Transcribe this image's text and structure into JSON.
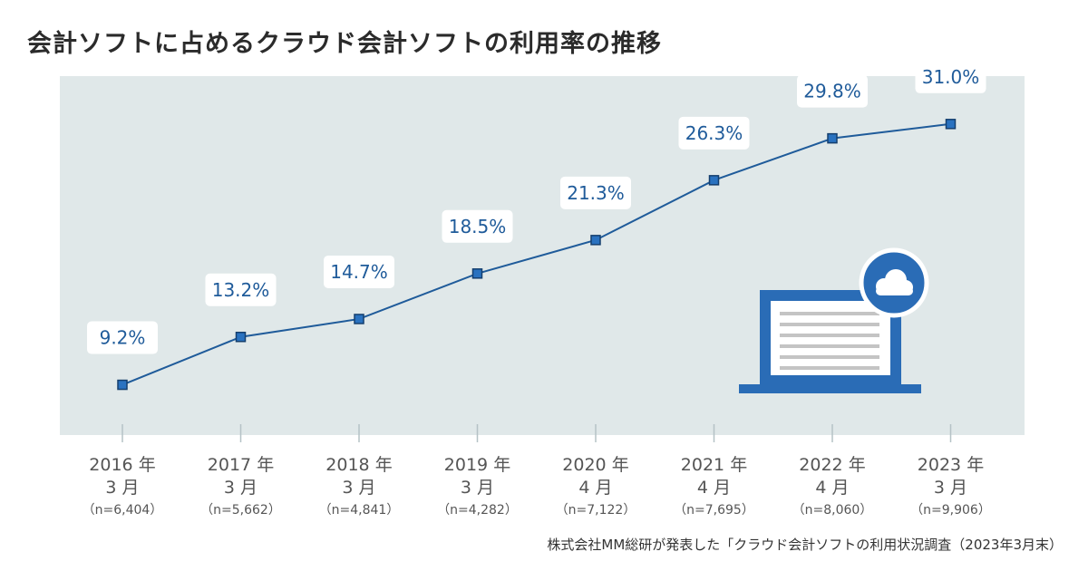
{
  "title": "会計ソフトに占めるクラウド会計ソフトの利用率の推移",
  "source_note": "株式会社MM総研が発表した「クラウド会計ソフトの利用状況調査（2023年3月末）",
  "chart_data": {
    "type": "line",
    "title": "会計ソフトに占めるクラウド会計ソフトの利用率の推移",
    "xlabel": "",
    "ylabel": "",
    "ylim": [
      5,
      35
    ],
    "grid": false,
    "categories": [
      {
        "year": "2016 年",
        "month": "3 月",
        "n": "（n=6,404）"
      },
      {
        "year": "2017 年",
        "month": "3 月",
        "n": "（n=5,662）"
      },
      {
        "year": "2018 年",
        "month": "3 月",
        "n": "（n=4,841）"
      },
      {
        "year": "2019 年",
        "month": "3 月",
        "n": "（n=4,282）"
      },
      {
        "year": "2020 年",
        "month": "4 月",
        "n": "（n=7,122）"
      },
      {
        "year": "2021 年",
        "month": "4 月",
        "n": "（n=7,695）"
      },
      {
        "year": "2022 年",
        "month": "4 月",
        "n": "（n=8,060）"
      },
      {
        "year": "2023 年",
        "month": "3 月",
        "n": "（n=9,906）"
      }
    ],
    "values": [
      9.2,
      13.2,
      14.7,
      18.5,
      21.3,
      26.3,
      29.8,
      31.0
    ],
    "labels": [
      "9.2%",
      "13.2%",
      "14.7%",
      "18.5%",
      "21.3%",
      "26.3%",
      "29.8%",
      "31.0%"
    ]
  },
  "colors": {
    "plot_bg": "#e0e8e9",
    "line": "#1f5b9a",
    "marker_fill": "#2a72c0",
    "marker_stroke": "#153f6e",
    "label_text": "#1f5b9a",
    "tick": "#b5c2c6",
    "laptop": "#2a6cb6",
    "cloud": "#2a6cb6"
  },
  "icons": {
    "illustration": "laptop-cloud-icon"
  }
}
